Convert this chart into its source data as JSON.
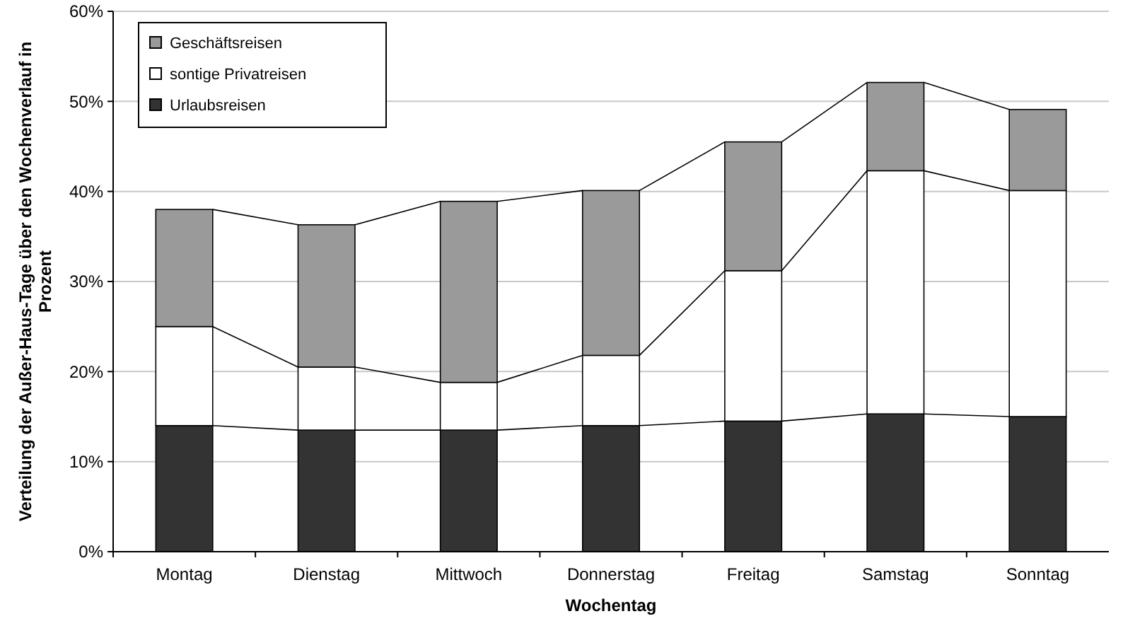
{
  "chart_data": {
    "type": "bar",
    "stacked": true,
    "xlabel": "Wochentag",
    "ylabel": "Verteilung der Außer-Haus-Tage über den Wochenverlauf in Prozent",
    "categories": [
      "Montag",
      "Dienstag",
      "Mittwoch",
      "Donnerstag",
      "Freitag",
      "Samstag",
      "Sonntag"
    ],
    "series": [
      {
        "name": "Urlaubsreisen",
        "color": "#333333",
        "values": [
          14,
          13.5,
          13.5,
          14,
          14.5,
          15.3,
          15
        ]
      },
      {
        "name": "sontige Privatreisen",
        "color": "#ffffff",
        "values": [
          11,
          7,
          5.3,
          7.8,
          16.7,
          27,
          25.1
        ]
      },
      {
        "name": "Geschäftsreisen",
        "color": "#9a9a9a",
        "values": [
          13,
          15.8,
          20.1,
          18.3,
          14.3,
          9.8,
          9
        ]
      }
    ],
    "ylim": [
      0,
      60
    ],
    "yticks": [
      {
        "value": 0,
        "label": "0%"
      },
      {
        "value": 10,
        "label": "10%"
      },
      {
        "value": 20,
        "label": "20%"
      },
      {
        "value": 30,
        "label": "30%"
      },
      {
        "value": 40,
        "label": "40%"
      },
      {
        "value": 50,
        "label": "50%"
      },
      {
        "value": 60,
        "label": "60%"
      }
    ],
    "grid": "y",
    "legend": "top left"
  }
}
